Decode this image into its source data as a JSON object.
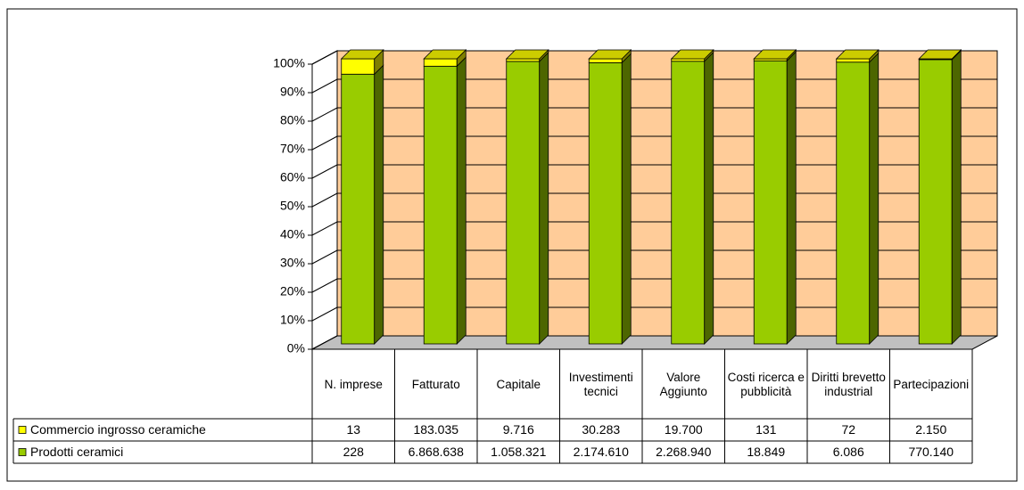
{
  "chart_data": {
    "type": "bar",
    "stacked_percent": true,
    "categories": [
      "N. imprese",
      "Fatturato",
      "Capitale",
      "Investimenti tecnici",
      "Valore Aggiunto",
      "Costi ricerca e pubblicità",
      "Diritti brevetto industrial",
      "Partecipazioni"
    ],
    "series": [
      {
        "name": "Commercio ingrosso ceramiche",
        "color": "#ffff00",
        "values": [
          13,
          183035,
          9716,
          30283,
          19700,
          131,
          72,
          2150
        ],
        "value_labels": [
          "13",
          "183.035",
          "9.716",
          "30.283",
          "19.700",
          "131",
          "72",
          "2.150"
        ]
      },
      {
        "name": "Prodotti ceramici",
        "color": "#99cc00",
        "values": [
          228,
          6868638,
          1058321,
          2174610,
          2268940,
          18849,
          6086,
          770140
        ],
        "value_labels": [
          "228",
          "6.868.638",
          "1.058.321",
          "2.174.610",
          "2.268.940",
          "18.849",
          "6.086",
          "770.140"
        ]
      }
    ],
    "ylim": [
      0,
      100
    ],
    "yticks": [
      {
        "value": 0,
        "label": "0%"
      },
      {
        "value": 10,
        "label": "10%"
      },
      {
        "value": 20,
        "label": "20%"
      },
      {
        "value": 30,
        "label": "30%"
      },
      {
        "value": 40,
        "label": "40%"
      },
      {
        "value": 50,
        "label": "50%"
      },
      {
        "value": 60,
        "label": "60%"
      },
      {
        "value": 70,
        "label": "70%"
      },
      {
        "value": 80,
        "label": "80%"
      },
      {
        "value": 90,
        "label": "90%"
      },
      {
        "value": 100,
        "label": "100%"
      }
    ],
    "grid": true
  }
}
